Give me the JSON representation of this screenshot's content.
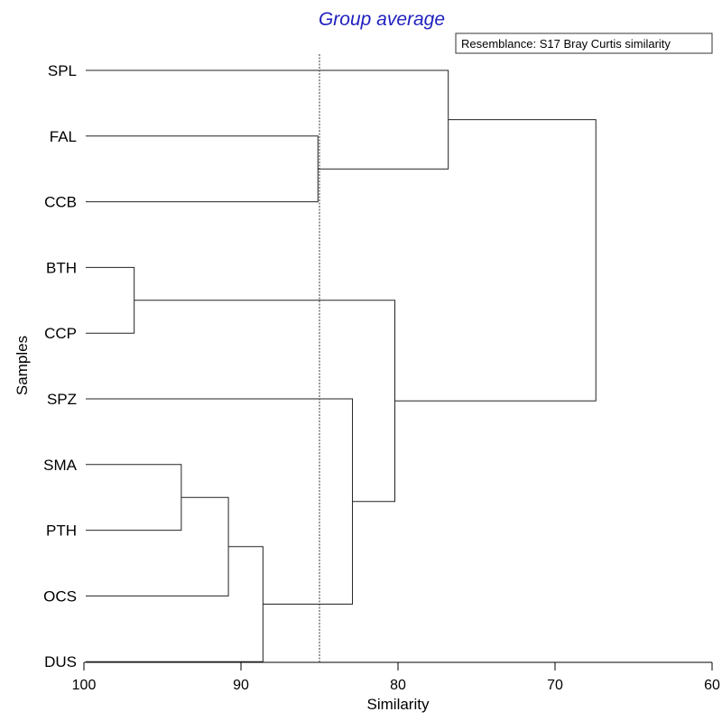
{
  "chart_data": {
    "type": "dendrogram",
    "title": "Group average",
    "resemblance_note": "Resemblance: S17 Bray Curtis similarity",
    "xlabel": "Similarity",
    "ylabel": "Samples",
    "xlim": [
      100,
      60
    ],
    "xticks": [
      100,
      90,
      80,
      70,
      60
    ],
    "reference_line": 85,
    "leaves": [
      "SPL",
      "FAL",
      "CCB",
      "BTH",
      "CCP",
      "SPZ",
      "SMA",
      "PTH",
      "OCS",
      "DUS"
    ],
    "merges": [
      {
        "a": "BTH",
        "b": "CCP",
        "similarity": 96.8
      },
      {
        "a": "SMA",
        "b": "PTH",
        "similarity": 93.8
      },
      {
        "a": "m1",
        "b": "OCS",
        "similarity": 90.8
      },
      {
        "a": "m2",
        "b": "DUS",
        "similarity": 88.6
      },
      {
        "a": "FAL",
        "b": "CCB",
        "similarity": 85.1
      },
      {
        "a": "SPZ",
        "b": "m3",
        "similarity": 82.9
      },
      {
        "a": "m0",
        "b": "m5",
        "similarity": 80.2
      },
      {
        "a": "SPL",
        "b": "m4",
        "similarity": 76.8
      },
      {
        "a": "m7",
        "b": "m6",
        "similarity": 67.4
      }
    ]
  }
}
